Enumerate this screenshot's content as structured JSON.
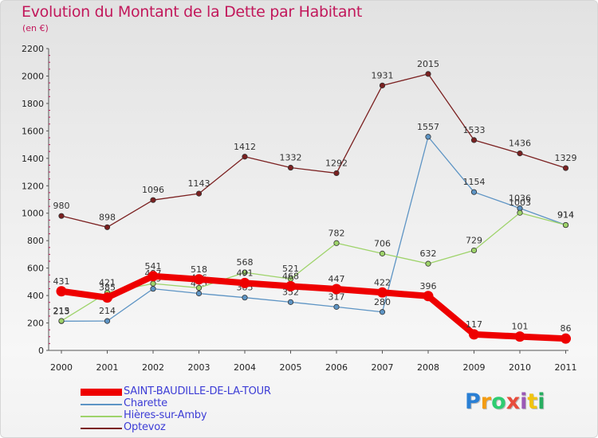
{
  "chart_data": {
    "type": "line",
    "title": "Evolution du Montant de la Dette par Habitant",
    "subtitle": "(en €)",
    "xlabel": "",
    "ylabel": "",
    "x": [
      "2000",
      "2001",
      "2002",
      "2003",
      "2004",
      "2005",
      "2006",
      "2007",
      "2008",
      "2009",
      "2010",
      "2011"
    ],
    "ylim": [
      0,
      2200
    ],
    "yticks": [
      "0",
      "200",
      "400",
      "600",
      "800",
      "1000",
      "1200",
      "1400",
      "1600",
      "1800",
      "2000",
      "2200"
    ],
    "grid": false,
    "legend_placement": "bottom-left",
    "series": [
      {
        "name": "Optevoz",
        "color": "#7b2020",
        "values": [
          980,
          898,
          1096,
          1143,
          1412,
          1332,
          1292,
          1931,
          2015,
          1533,
          1436,
          1329
        ],
        "labels": [
          "980",
          "898",
          "1096",
          "1143",
          "1412",
          "1332",
          "1292",
          "1931",
          "2015",
          "1533",
          "1436",
          "1329"
        ]
      },
      {
        "name": "Charette",
        "color": "#5d94c4",
        "values": [
          213,
          214,
          449,
          415,
          385,
          352,
          317,
          280,
          1557,
          1154,
          1036,
          914
        ],
        "labels": [
          "213",
          "214",
          "449",
          "415",
          "385",
          "352",
          "317",
          "280",
          "1557",
          "1154",
          "1036",
          "914"
        ]
      },
      {
        "name": "Hières-sur-Amby",
        "color": "#9ed36a",
        "values": [
          215,
          421,
          487,
          456,
          568,
          521,
          782,
          706,
          632,
          729,
          1003,
          914
        ],
        "labels": [
          "215",
          "421",
          "487",
          "456",
          "568",
          "521",
          "782",
          "706",
          "632",
          "729",
          "1003",
          "914"
        ]
      },
      {
        "name": "SAINT-BAUDILLE-DE-LA-TOUR",
        "color": "#ee0000",
        "values": [
          431,
          385,
          541,
          518,
          491,
          468,
          447,
          422,
          396,
          117,
          101,
          86
        ],
        "labels": [
          "431",
          "385",
          "541",
          "518",
          "491",
          "468",
          "447",
          "422",
          "396",
          "117",
          "101",
          "86"
        ]
      }
    ],
    "legend_order": [
      "SAINT-BAUDILLE-DE-LA-TOUR",
      "Charette",
      "Hières-sur-Amby",
      "Optevoz"
    ]
  },
  "logo": {
    "letters": [
      "P",
      "r",
      "o",
      "x",
      "i",
      "t",
      "i"
    ],
    "colors": [
      "#2a7fd4",
      "#f39c12",
      "#2ecc71",
      "#e74c3c",
      "#9b59b6",
      "#f1c40f",
      "#27ae60"
    ]
  }
}
